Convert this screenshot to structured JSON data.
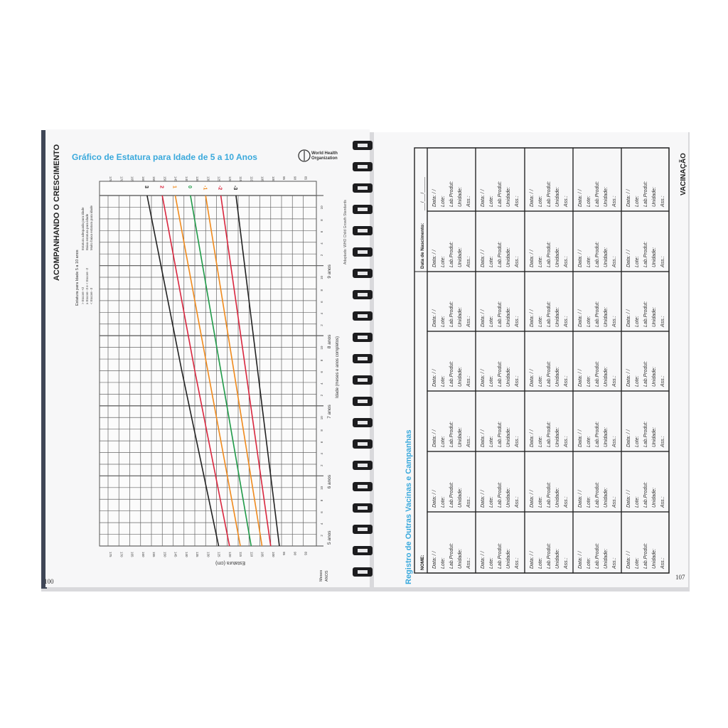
{
  "left_page": {
    "section_title": "ACOMPANHANDO O CRESCIMENTO",
    "chart_title": "Gráfico de Estatura para Idade de 5 a 10 Anos",
    "logo_text": "World Health Organization",
    "source": "Adaptado: WHO Child Growth Standards",
    "page_number": "100",
    "legend": {
      "title": "Estatura para Idade 5 a 10 anos",
      "rows": [
        {
          "key": "> Escore +2",
          "label": "Estatura adequada para idade"
        },
        {
          "key": "≥ Escore -3 e < Escore -2",
          "label": "Baixa estatura para idade"
        },
        {
          "key": "< Escore -3",
          "label": "Muito baixa estatura para idade"
        }
      ]
    }
  },
  "chart_data": {
    "type": "line",
    "title": "Gráfico de Estatura para Idade de 5 a 10 Anos",
    "xlabel": "Idade (meses e anos completos)",
    "ylabel": "Estatura (cm)",
    "x_axis_row_labels": [
      "Meses",
      "ANOS"
    ],
    "x_year_labels": [
      "5 anos",
      "6 anos",
      "7 anos",
      "8 anos",
      "9 anos"
    ],
    "x_month_ticks": [
      "2",
      "4",
      "6",
      "8",
      "10"
    ],
    "xlim": [
      5,
      10
    ],
    "ylim": [
      85,
      175
    ],
    "y_ticks": [
      175,
      170,
      165,
      160,
      155,
      150,
      145,
      140,
      135,
      130,
      125,
      120,
      115,
      110,
      105,
      100,
      95,
      90,
      85
    ],
    "grid": true,
    "orientation": "rotated 90°",
    "series": [
      {
        "name": "3",
        "color": "#222222",
        "x": [
          5,
          7.5,
          10
        ],
        "y": [
          124,
          141,
          157
        ]
      },
      {
        "name": "2",
        "color": "#d9263e",
        "x": [
          5,
          7.5,
          10
        ],
        "y": [
          119,
          135,
          150
        ]
      },
      {
        "name": "1",
        "color": "#f08a1c",
        "x": [
          5,
          7.5,
          10
        ],
        "y": [
          114,
          129,
          144
        ]
      },
      {
        "name": "0",
        "color": "#1f9a48",
        "x": [
          5,
          7.5,
          10
        ],
        "y": [
          109,
          123,
          137
        ]
      },
      {
        "name": "-1",
        "color": "#f08a1c",
        "x": [
          5,
          7.5,
          10
        ],
        "y": [
          104,
          117,
          130
        ]
      },
      {
        "name": "-2",
        "color": "#d9263e",
        "x": [
          5,
          7.5,
          10
        ],
        "y": [
          100,
          111.5,
          123
        ]
      },
      {
        "name": "-3",
        "color": "#222222",
        "x": [
          5,
          7.5,
          10
        ],
        "y": [
          96,
          106,
          116
        ]
      }
    ]
  },
  "right_page": {
    "section_title": "VACINAÇÃO",
    "table_title": "Registro de Outras Vacinas e Campanhas",
    "name_label": "NOME:",
    "birth_label": "Data de Nascimento:",
    "birth_value": "___/___/______",
    "page_number": "107",
    "cell_fields": [
      "Data:      /      /",
      "Lote:",
      "Lab.Produt:",
      "Unidade:",
      "Ass.:"
    ]
  },
  "colors": {
    "accent": "#3aa9dc",
    "page": "#f7f7f8",
    "ink": "#222222"
  }
}
